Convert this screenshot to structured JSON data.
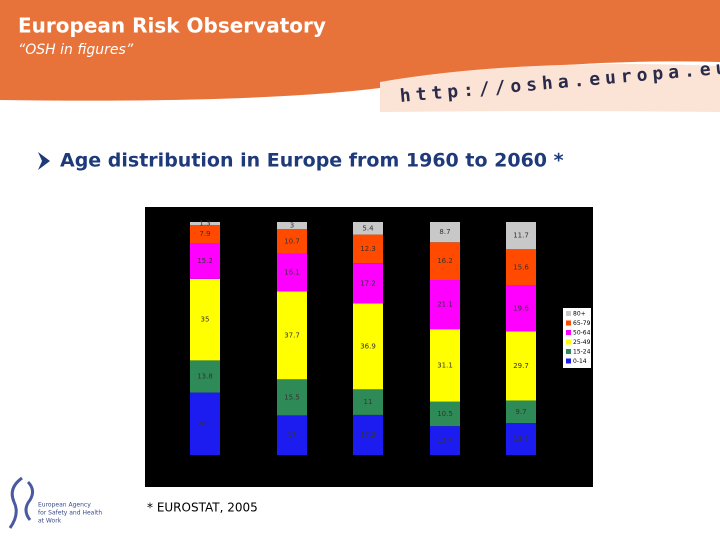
{
  "header": {
    "title": "European Risk Observatory",
    "subtitle": "“OSH in figures”",
    "url": "http://osha.europa.eu"
  },
  "heading": "Age distribution in Europe from 1960 to 2060 *",
  "footnote": "* EUROSTAT, 2005",
  "logo_text": [
    "European Agency",
    "for Safety and Health",
    "at Work"
  ],
  "chart_data": {
    "type": "stacked-bar",
    "categories": [
      null,
      null,
      null,
      null,
      null
    ],
    "ylim": [
      0,
      100
    ],
    "series": [
      {
        "name": "0-14",
        "color": "#1c1cf0",
        "values": [
          26.8,
          17,
          17.2,
          12.4,
          13.7
        ]
      },
      {
        "name": "15-24",
        "color": "#2e8b57",
        "values": [
          13.8,
          15.5,
          11,
          10.5,
          9.7
        ]
      },
      {
        "name": "25-49",
        "color": "#ffff00",
        "values": [
          35,
          37.7,
          36.9,
          31.1,
          29.7
        ]
      },
      {
        "name": "50-64",
        "color": "#ff00ff",
        "values": [
          15.2,
          16.1,
          17.2,
          21.1,
          19.6
        ]
      },
      {
        "name": "65-79",
        "color": "#ff4a00",
        "values": [
          7.9,
          10.7,
          12.3,
          16.2,
          15.6
        ]
      },
      {
        "name": "80+",
        "color": "#c8c8c8",
        "values": [
          1.3,
          3,
          5.4,
          8.7,
          11.7
        ]
      }
    ]
  }
}
